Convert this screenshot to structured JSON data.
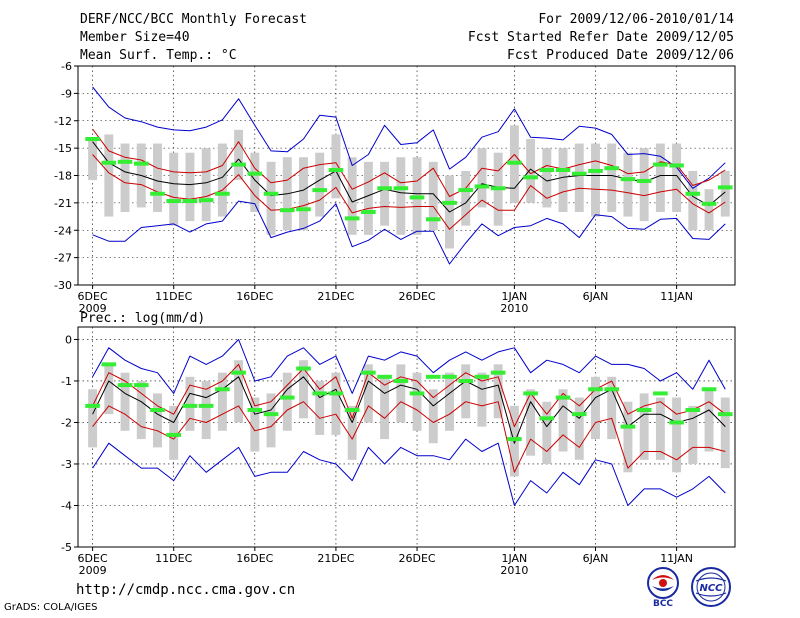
{
  "header": {
    "title": "DERF/NCC/BCC Monthly Forecast",
    "member_size": "Member Size=40",
    "variable": "Mean Surf. Temp.: °C",
    "period": "For 2009/12/06-2010/01/14",
    "started": "Fcst Started Refer Date 2009/12/05",
    "produced": "Fcst Produced Date 2009/12/06"
  },
  "footer": {
    "url": "http://cmdp.ncc.cma.gov.cn",
    "grads": "GrADS: COLA/IGES",
    "logo_bcc": "BCC",
    "logo_ncc": "NCC"
  },
  "colors": {
    "envelope": "#0000cc",
    "spread": "#cc0000",
    "mean": "#000000",
    "median": "#33ee33",
    "box": "#cccccc",
    "grid": "#000000"
  },
  "chart_data": [
    {
      "type": "box-ensemble",
      "title": "Mean Surf. Temp.: °C",
      "ylim": [
        -30,
        -6
      ],
      "yticks": [
        -30,
        -27,
        -24,
        -21,
        -18,
        -15,
        -12,
        -9,
        -6
      ],
      "ytick_labels": [
        "-30",
        "-27",
        "-24",
        "-21",
        "-18",
        "-15",
        "-12",
        "-9",
        "-6"
      ],
      "x_start": "2009-12-06",
      "days": 40,
      "xtick_index": [
        0,
        5,
        10,
        15,
        20,
        26,
        31,
        36
      ],
      "xtick_labels": [
        "6DEC",
        "11DEC",
        "16DEC",
        "21DEC",
        "26DEC",
        "1JAN",
        "6JAN",
        "11JAN"
      ],
      "year_labels": [
        {
          "index": 0,
          "label": "2009"
        },
        {
          "index": 26,
          "label": "2010"
        }
      ],
      "max": [
        -8.3,
        -10.5,
        -11.7,
        -12.1,
        -12.7,
        -13.0,
        -13.1,
        -12.7,
        -11.9,
        -9.6,
        -12.5,
        -15.3,
        -15.4,
        -14.0,
        -11.4,
        -11.6,
        -16.9,
        -15.7,
        -12.5,
        -14.6,
        -14.4,
        -13.0,
        -17.3,
        -16.0,
        -13.8,
        -13.2,
        -10.7,
        -13.8,
        -13.9,
        -14.1,
        -12.6,
        -12.8,
        -13.5,
        -15.7,
        -15.6,
        -15.9,
        -17.1,
        -19.4,
        -18.3,
        -16.6
      ],
      "spread_high": [
        -12.9,
        -15.3,
        -16.0,
        -16.3,
        -17.2,
        -17.6,
        -17.7,
        -17.6,
        -16.9,
        -14.3,
        -17.2,
        -18.8,
        -18.5,
        -17.2,
        -16.8,
        -16.6,
        -19.5,
        -18.7,
        -17.7,
        -18.8,
        -18.6,
        -17.2,
        -20.3,
        -19.4,
        -17.2,
        -17.5,
        -15.7,
        -17.8,
        -16.9,
        -17.3,
        -16.8,
        -16.4,
        -16.9,
        -17.8,
        -17.6,
        -16.5,
        -16.8,
        -19.1,
        -18.5,
        -17.4
      ],
      "mean": [
        -14.3,
        -16.6,
        -17.6,
        -18.0,
        -18.6,
        -18.9,
        -19.0,
        -18.8,
        -18.2,
        -16.2,
        -18.5,
        -20.2,
        -20.0,
        -19.6,
        -18.5,
        -17.5,
        -20.9,
        -20.2,
        -19.5,
        -19.9,
        -20.0,
        -20.0,
        -22.0,
        -21.0,
        -18.9,
        -19.3,
        -19.4,
        -17.3,
        -18.6,
        -18.2,
        -18.0,
        -18.0,
        -18.0,
        -18.4,
        -18.7,
        -18.0,
        -18.0,
        -20.3,
        -21.3,
        -19.8
      ],
      "spread_low": [
        -15.7,
        -17.7,
        -18.8,
        -19.0,
        -19.8,
        -20.4,
        -20.6,
        -20.3,
        -19.6,
        -17.9,
        -20.2,
        -21.8,
        -21.7,
        -21.3,
        -20.7,
        -19.3,
        -22.1,
        -21.6,
        -21.4,
        -21.5,
        -21.4,
        -21.4,
        -23.9,
        -22.3,
        -20.7,
        -21.8,
        -21.8,
        -19.1,
        -20.5,
        -19.8,
        -19.4,
        -19.5,
        -19.6,
        -19.9,
        -20.2,
        -19.8,
        -19.5,
        -21.1,
        -22.1,
        -20.9
      ],
      "min": [
        -24.5,
        -25.2,
        -25.2,
        -23.7,
        -23.5,
        -23.3,
        -24.2,
        -23.3,
        -23.0,
        -20.8,
        -21.1,
        -24.8,
        -24.2,
        -23.8,
        -23.0,
        -21.1,
        -25.8,
        -25.1,
        -23.9,
        -25.0,
        -24.1,
        -24.1,
        -27.7,
        -25.4,
        -23.3,
        -24.6,
        -23.7,
        -23.5,
        -22.7,
        -23.3,
        -24.8,
        -22.3,
        -22.5,
        -23.8,
        -23.9,
        -22.8,
        -22.7,
        -24.9,
        -25.0,
        -23.3
      ],
      "box_high": [
        -14.0,
        -13.5,
        -14.5,
        -14.5,
        -14.5,
        -15.5,
        -15.5,
        -15.0,
        -14.5,
        -13.0,
        -15.5,
        -16.5,
        -16.0,
        -16.0,
        -15.5,
        -13.5,
        -16.0,
        -16.5,
        -16.5,
        -16.0,
        -16.0,
        -16.5,
        -18.0,
        -17.5,
        -15.0,
        -15.5,
        -12.5,
        -14.0,
        -15.0,
        -15.0,
        -14.5,
        -14.5,
        -14.5,
        -15.5,
        -15.0,
        -14.5,
        -14.5,
        -17.5,
        -19.5,
        -17.5
      ],
      "box_low": [
        -18.5,
        -22.5,
        -22.0,
        -21.5,
        -22.0,
        -23.5,
        -23.0,
        -23.0,
        -22.5,
        -18.5,
        -22.0,
        -24.5,
        -24.0,
        -24.0,
        -22.5,
        -20.5,
        -24.5,
        -24.5,
        -23.5,
        -24.5,
        -24.5,
        -24.0,
        -26.0,
        -23.5,
        -21.5,
        -23.5,
        -21.0,
        -21.0,
        -21.5,
        -22.0,
        -22.0,
        -22.5,
        -22.0,
        -22.5,
        -23.0,
        -22.0,
        -22.0,
        -24.0,
        -24.0,
        -22.5
      ],
      "median": [
        -14.0,
        -16.6,
        -16.5,
        -16.7,
        -20.0,
        -20.8,
        -20.8,
        -20.7,
        -20.0,
        -16.8,
        -17.8,
        -20.0,
        -21.8,
        -21.7,
        -19.6,
        -17.4,
        -22.7,
        -22.0,
        -19.4,
        -19.4,
        -20.4,
        -22.8,
        -21.0,
        -19.6,
        -19.2,
        -19.4,
        -16.6,
        -18.2,
        -17.4,
        -17.4,
        -17.8,
        -17.5,
        -17.2,
        -18.4,
        -18.6,
        -16.8,
        -16.9,
        -20.0,
        -21.1,
        -19.3
      ]
    },
    {
      "type": "box-ensemble",
      "title": "Prec.: log(mm/d)",
      "ylim": [
        -5,
        0.3
      ],
      "yticks": [
        -5,
        -4,
        -3,
        -2,
        -1,
        0
      ],
      "ytick_labels": [
        "-5",
        "-4",
        "-3",
        "-2",
        "-1",
        "0"
      ],
      "x_start": "2009-12-06",
      "days": 40,
      "xtick_index": [
        0,
        5,
        10,
        15,
        20,
        26,
        31,
        36
      ],
      "xtick_labels": [
        "6DEC",
        "11DEC",
        "16DEC",
        "21DEC",
        "26DEC",
        "1JAN",
        "6JAN",
        "11JAN"
      ],
      "year_labels": [
        {
          "index": 0,
          "label": "2009"
        },
        {
          "index": 26,
          "label": "2010"
        }
      ],
      "max": [
        -0.9,
        -0.2,
        -0.5,
        -0.7,
        -0.8,
        -1.3,
        -0.4,
        -0.6,
        -0.4,
        0.0,
        -1.0,
        -0.9,
        -0.4,
        -0.2,
        -0.6,
        -0.4,
        -1.3,
        -0.4,
        -0.5,
        -0.3,
        -0.4,
        -0.8,
        -0.5,
        -0.3,
        -0.5,
        -0.3,
        -0.2,
        -0.8,
        -0.5,
        -0.6,
        -0.8,
        -0.4,
        -0.6,
        -0.6,
        -0.7,
        -1.0,
        -0.8,
        -1.2,
        -0.5,
        -1.2
      ],
      "spread_high": [
        -1.6,
        -0.8,
        -1.0,
        -1.3,
        -1.6,
        -1.8,
        -1.1,
        -1.2,
        -1.0,
        -0.6,
        -1.6,
        -1.5,
        -1.1,
        -0.7,
        -1.2,
        -0.9,
        -1.9,
        -0.8,
        -1.1,
        -0.9,
        -1.0,
        -1.4,
        -1.1,
        -0.8,
        -1.0,
        -0.9,
        -2.1,
        -1.3,
        -1.8,
        -1.3,
        -1.6,
        -1.2,
        -1.0,
        -1.8,
        -1.6,
        -1.5,
        -1.8,
        -1.7,
        -1.5,
        -1.8
      ],
      "mean": [
        -1.8,
        -1.0,
        -1.3,
        -1.5,
        -1.8,
        -2.0,
        -1.3,
        -1.4,
        -1.2,
        -0.9,
        -1.8,
        -1.7,
        -1.2,
        -0.9,
        -1.4,
        -1.2,
        -2.0,
        -1.0,
        -1.3,
        -1.1,
        -1.2,
        -1.6,
        -1.3,
        -1.0,
        -1.2,
        -1.1,
        -2.5,
        -1.5,
        -2.1,
        -1.6,
        -1.9,
        -1.4,
        -1.2,
        -2.1,
        -1.8,
        -1.8,
        -2.0,
        -1.9,
        -1.7,
        -2.1
      ],
      "spread_low": [
        -2.1,
        -1.6,
        -1.8,
        -2.1,
        -2.2,
        -2.4,
        -1.9,
        -2.0,
        -1.8,
        -1.6,
        -2.2,
        -2.1,
        -1.7,
        -1.5,
        -1.9,
        -1.8,
        -2.4,
        -1.6,
        -1.9,
        -1.5,
        -1.7,
        -2.0,
        -1.8,
        -1.5,
        -1.6,
        -1.5,
        -3.2,
        -2.4,
        -2.7,
        -2.3,
        -2.6,
        -2.0,
        -1.9,
        -3.1,
        -2.7,
        -2.7,
        -2.9,
        -2.6,
        -2.6,
        -2.7
      ],
      "min": [
        -3.1,
        -2.5,
        -2.8,
        -3.1,
        -3.1,
        -3.4,
        -2.8,
        -3.2,
        -2.9,
        -2.6,
        -3.3,
        -3.2,
        -3.2,
        -2.7,
        -2.9,
        -3.0,
        -3.4,
        -2.6,
        -3.0,
        -2.6,
        -2.8,
        -2.8,
        -2.9,
        -2.4,
        -2.7,
        -2.5,
        -4.0,
        -3.4,
        -3.7,
        -3.2,
        -3.5,
        -2.9,
        -3.0,
        -4.0,
        -3.6,
        -3.6,
        -3.8,
        -3.6,
        -3.3,
        -3.7
      ],
      "box_high": [
        -1.2,
        -0.6,
        -0.8,
        -1.0,
        -1.3,
        -1.6,
        -0.9,
        -1.0,
        -0.8,
        -0.5,
        -1.4,
        -1.3,
        -0.8,
        -0.5,
        -1.0,
        -0.8,
        -1.6,
        -0.6,
        -0.9,
        -0.6,
        -0.8,
        -1.2,
        -0.8,
        -0.6,
        -0.8,
        -0.6,
        -1.6,
        -1.2,
        -1.5,
        -1.2,
        -1.4,
        -0.9,
        -0.9,
        -1.5,
        -1.3,
        -1.4,
        -1.4,
        -1.6,
        -1.2,
        -1.4
      ],
      "box_low": [
        -2.6,
        -1.8,
        -2.2,
        -2.4,
        -2.6,
        -2.9,
        -2.2,
        -2.4,
        -2.2,
        -2.0,
        -2.7,
        -2.6,
        -2.2,
        -1.9,
        -2.3,
        -2.3,
        -2.9,
        -2.0,
        -2.4,
        -2.0,
        -2.2,
        -2.5,
        -2.2,
        -1.9,
        -2.1,
        -1.9,
        -3.3,
        -2.8,
        -3.0,
        -2.7,
        -2.9,
        -2.4,
        -2.4,
        -3.2,
        -2.9,
        -2.9,
        -3.2,
        -3.0,
        -2.7,
        -3.1
      ],
      "median": [
        -1.6,
        -0.6,
        -1.1,
        -1.1,
        -1.7,
        -2.3,
        -1.6,
        -1.6,
        -1.2,
        -0.8,
        -1.7,
        -1.8,
        -1.4,
        -0.7,
        -1.3,
        -1.3,
        -1.7,
        -0.8,
        -0.9,
        -1.0,
        -1.3,
        -0.9,
        -0.9,
        -1.0,
        -0.9,
        -0.8,
        -2.4,
        -1.3,
        -1.9,
        -1.4,
        -1.8,
        -1.2,
        -1.2,
        -2.1,
        -1.7,
        -1.3,
        -2.0,
        -1.7,
        -1.2,
        -1.8
      ]
    }
  ]
}
